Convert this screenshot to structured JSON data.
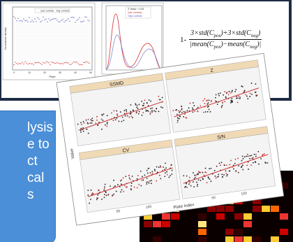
{
  "scatter_plot": {
    "y_label": "Normalized intensity",
    "x_label": "Plate",
    "legend": [
      "'pos' controls",
      "'neg' controls"
    ],
    "x_ticks": [
      "0",
      "10",
      "20",
      "30",
      "40",
      "50"
    ]
  },
  "density_plot": {
    "legend": [
      "Z' factor = 0.64",
      "'pos' controls",
      "'neg' controls"
    ]
  },
  "formula": {
    "prefix": "1-",
    "numerator": [
      "3×std(",
      "C",
      "pos",
      ")+3×std(",
      "C",
      "neg",
      ")"
    ],
    "denominator": [
      "|mean(",
      "C",
      "pos",
      ")−mean(",
      "C",
      "neg",
      ")|"
    ]
  },
  "panels": {
    "titles": [
      "SSMD",
      "Z",
      "CV",
      "S/N"
    ],
    "y_label": "Value",
    "x_label": "Plate Index",
    "x_ticks": [
      "50",
      "100"
    ]
  },
  "callout": {
    "lines": [
      "lysis",
      "e to",
      "ct",
      "cal",
      "s"
    ]
  }
}
